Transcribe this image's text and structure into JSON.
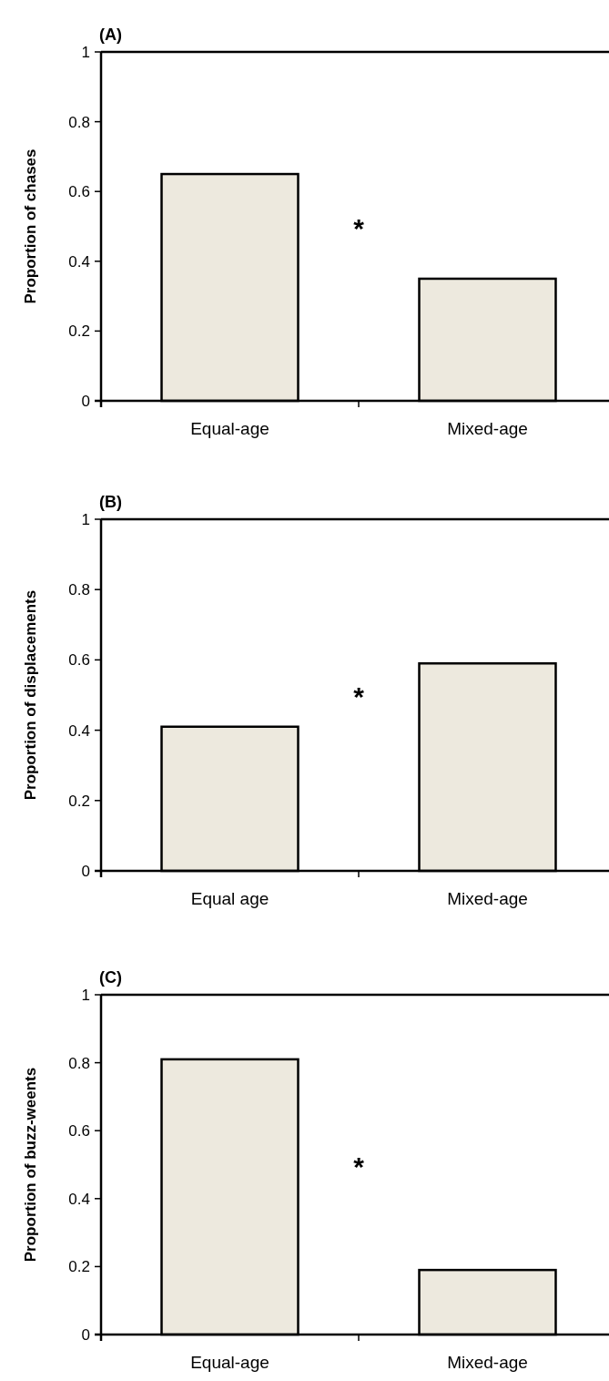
{
  "chart_data": [
    {
      "type": "bar",
      "title": "(A)",
      "ylabel": "Proportion of chases",
      "categories": [
        "Equal-age",
        "Mixed-age"
      ],
      "values": [
        0.65,
        0.35
      ],
      "color": "#ede9de",
      "ylim": [
        0,
        1
      ],
      "yticks": [
        0,
        0.2,
        0.4,
        0.6,
        0.8,
        1
      ],
      "grid": false,
      "annotations": [
        "*"
      ]
    },
    {
      "type": "bar",
      "title": "(B)",
      "ylabel": "Proportion of displacements",
      "categories": [
        "Equal age",
        "Mixed-age"
      ],
      "values": [
        0.41,
        0.59
      ],
      "color": "#ede9de",
      "ylim": [
        0,
        1
      ],
      "yticks": [
        0,
        0.2,
        0.4,
        0.6,
        0.8,
        1
      ],
      "grid": false,
      "annotations": [
        "*"
      ]
    },
    {
      "type": "bar",
      "title": "(C)",
      "ylabel": "Proportion of buzz-weents",
      "categories": [
        "Equal-age",
        "Mixed-age"
      ],
      "values": [
        0.81,
        0.19
      ],
      "color": "#ede9de",
      "ylim": [
        0,
        1
      ],
      "yticks": [
        0,
        0.2,
        0.4,
        0.6,
        0.8,
        1
      ],
      "grid": false,
      "annotations": [
        "*"
      ]
    }
  ]
}
